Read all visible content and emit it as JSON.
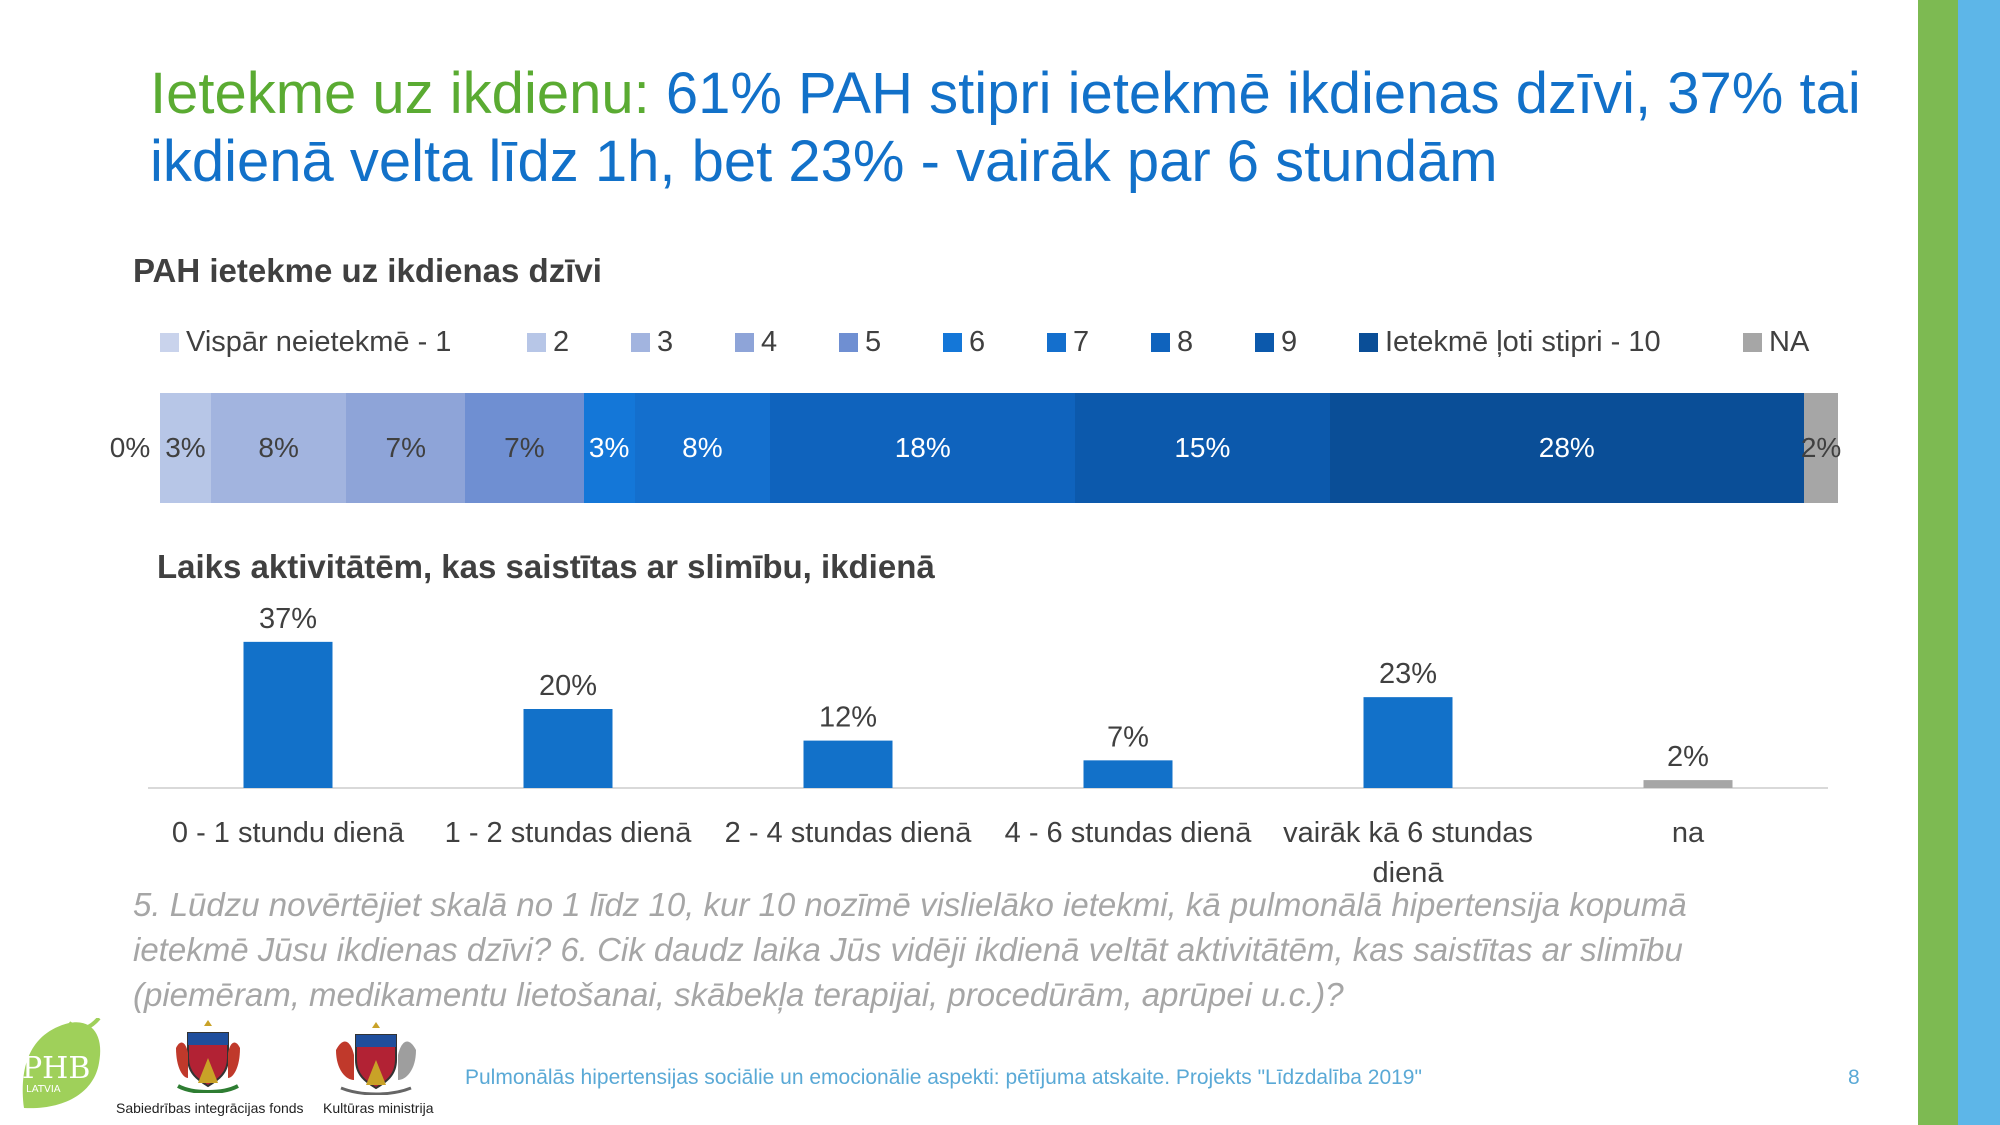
{
  "slide": {
    "title_lead": "Ietekme uz ikdienu:",
    "title_rest": " 61% PAH stipri ietekmē ikdienas dzīvi, 37% tai ikdienā velta līdz 1h, bet 23% - vairāk par 6 stundām",
    "note": "5. Lūdzu novērtējiet skalā no 1 līdz 10, kur 10 nozīmē vislielāko ietekmi, kā pulmonālā hipertensija kopumā ietekmē Jūsu ikdienas dzīvi? 6. Cik daudz laika Jūs vidēji ikdienā veltāt aktivitātēm, kas saistītas ar slimību (piemēram, medikamentu lietošanai, skābekļa terapijai, procedūrām, aprūpei u.c.)?",
    "footer": "Pulmonālās hipertensijas sociālie un emocionālie aspekti: pētījuma atskaite. Projekts \"Līdzdalība 2019\"",
    "page_number": "8",
    "logo_text": "PHB",
    "logo_subtext": "LATVIA",
    "crest_captions": [
      "Sabiedrības integrācijas fonds",
      "Kultūras ministrija"
    ],
    "colors": {
      "title_lead": "#5aab32",
      "title_main": "#1271c9",
      "stripe_green": "#7dba52",
      "stripe_blue": "#5db6e8"
    }
  },
  "chart_data": [
    {
      "type": "bar",
      "orientation": "horizontal-stacked-100",
      "title": "PAH ietekme uz ikdienas dzīvi",
      "legend_position": "top",
      "series": [
        {
          "name": "Vispār neietekmē - 1",
          "value": 0,
          "label": "0%",
          "color": "#c9d3ec"
        },
        {
          "name": "2",
          "value": 3,
          "label": "3%",
          "color": "#b7c6e7"
        },
        {
          "name": "3",
          "value": 8,
          "label": "8%",
          "color": "#a2b4df"
        },
        {
          "name": "4",
          "value": 7,
          "label": "7%",
          "color": "#8ea4d8"
        },
        {
          "name": "5",
          "value": 7,
          "label": "7%",
          "color": "#6f8fd2"
        },
        {
          "name": "6",
          "value": 3,
          "label": "3%",
          "color": "#1477d8"
        },
        {
          "name": "7",
          "value": 8,
          "label": "8%",
          "color": "#146fcd"
        },
        {
          "name": "8",
          "value": 18,
          "label": "18%",
          "color": "#0f63bd"
        },
        {
          "name": "9",
          "value": 15,
          "label": "15%",
          "color": "#0c59ac"
        },
        {
          "name": "Ietekmē ļoti stipri - 10",
          "value": 28,
          "label": "28%",
          "color": "#0a4e97"
        },
        {
          "name": "NA",
          "value": 2,
          "label": "2%",
          "color": "#a6a6a6"
        }
      ]
    },
    {
      "type": "bar",
      "title": "Laiks aktivitātēm, kas saistītas ar slimību, ikdienā",
      "categories": [
        "0 - 1 stundu dienā",
        "1 - 2 stundas dienā",
        "2 - 4 stundas dienā",
        "4 - 6 stundas dienā",
        "vairāk kā 6 stundas dienā",
        "na"
      ],
      "values": [
        37,
        20,
        12,
        7,
        23,
        2
      ],
      "labels": [
        "37%",
        "20%",
        "12%",
        "7%",
        "23%",
        "2%"
      ],
      "colors": [
        "#1271c9",
        "#1271c9",
        "#1271c9",
        "#1271c9",
        "#1271c9",
        "#a6a6a6"
      ],
      "ylim": [
        0,
        40
      ],
      "grid": false
    }
  ]
}
